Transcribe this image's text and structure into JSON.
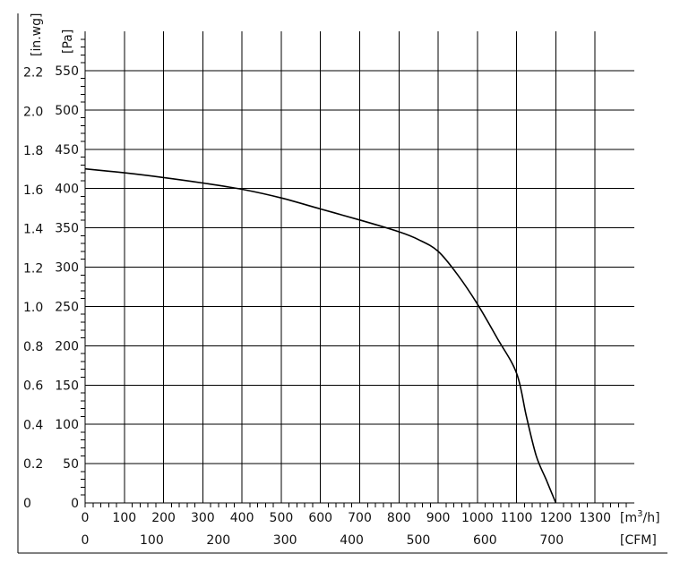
{
  "chart_data": {
    "type": "line",
    "title": "",
    "grid": true,
    "x_primary": {
      "label": "[m³/h]",
      "label_base": "[m",
      "label_sup": "3",
      "label_end": "/h]",
      "range": [
        0,
        1400
      ],
      "ticks": [
        0,
        100,
        200,
        300,
        400,
        500,
        600,
        700,
        800,
        900,
        1000,
        1100,
        1200,
        1300
      ],
      "tick_labels": [
        "0",
        "100",
        "200",
        "300",
        "400",
        "500",
        "600",
        "700",
        "800",
        "900",
        "1000",
        "1100",
        "1200",
        "1300"
      ]
    },
    "x_secondary": {
      "label": "[CFM]",
      "ticks": [
        0,
        100,
        200,
        300,
        400,
        500,
        600,
        700
      ],
      "tick_labels": [
        "0",
        "100",
        "200",
        "300",
        "400",
        "500",
        "600",
        "700"
      ]
    },
    "y_primary": {
      "label": "[Pa]",
      "range": [
        0,
        600
      ],
      "ticks": [
        0,
        50,
        100,
        150,
        200,
        250,
        300,
        350,
        400,
        450,
        500,
        550
      ],
      "tick_labels": [
        "0",
        "50",
        "100",
        "150",
        "200",
        "250",
        "300",
        "350",
        "400",
        "450",
        "500",
        "550"
      ]
    },
    "y_secondary": {
      "label": "[in.wg]",
      "ticks": [
        0,
        0.2,
        0.4,
        0.6,
        0.8,
        1.0,
        1.2,
        1.4,
        1.6,
        1.8,
        2.0,
        2.2
      ],
      "tick_labels": [
        "0",
        "0.2",
        "0.4",
        "0.6",
        "0.8",
        "1.0",
        "1.2",
        "1.4",
        "1.6",
        "1.8",
        "2.0",
        "2.2"
      ]
    },
    "series": [
      {
        "x": [
          0,
          100,
          200,
          300,
          400,
          500,
          600,
          700,
          800,
          850,
          900,
          950,
          1000,
          1050,
          1100,
          1125,
          1150,
          1175,
          1200
        ],
        "y": [
          425,
          420,
          414,
          407,
          399,
          388,
          374,
          360,
          345,
          335,
          320,
          290,
          253,
          210,
          165,
          110,
          60,
          30,
          0
        ]
      }
    ]
  }
}
